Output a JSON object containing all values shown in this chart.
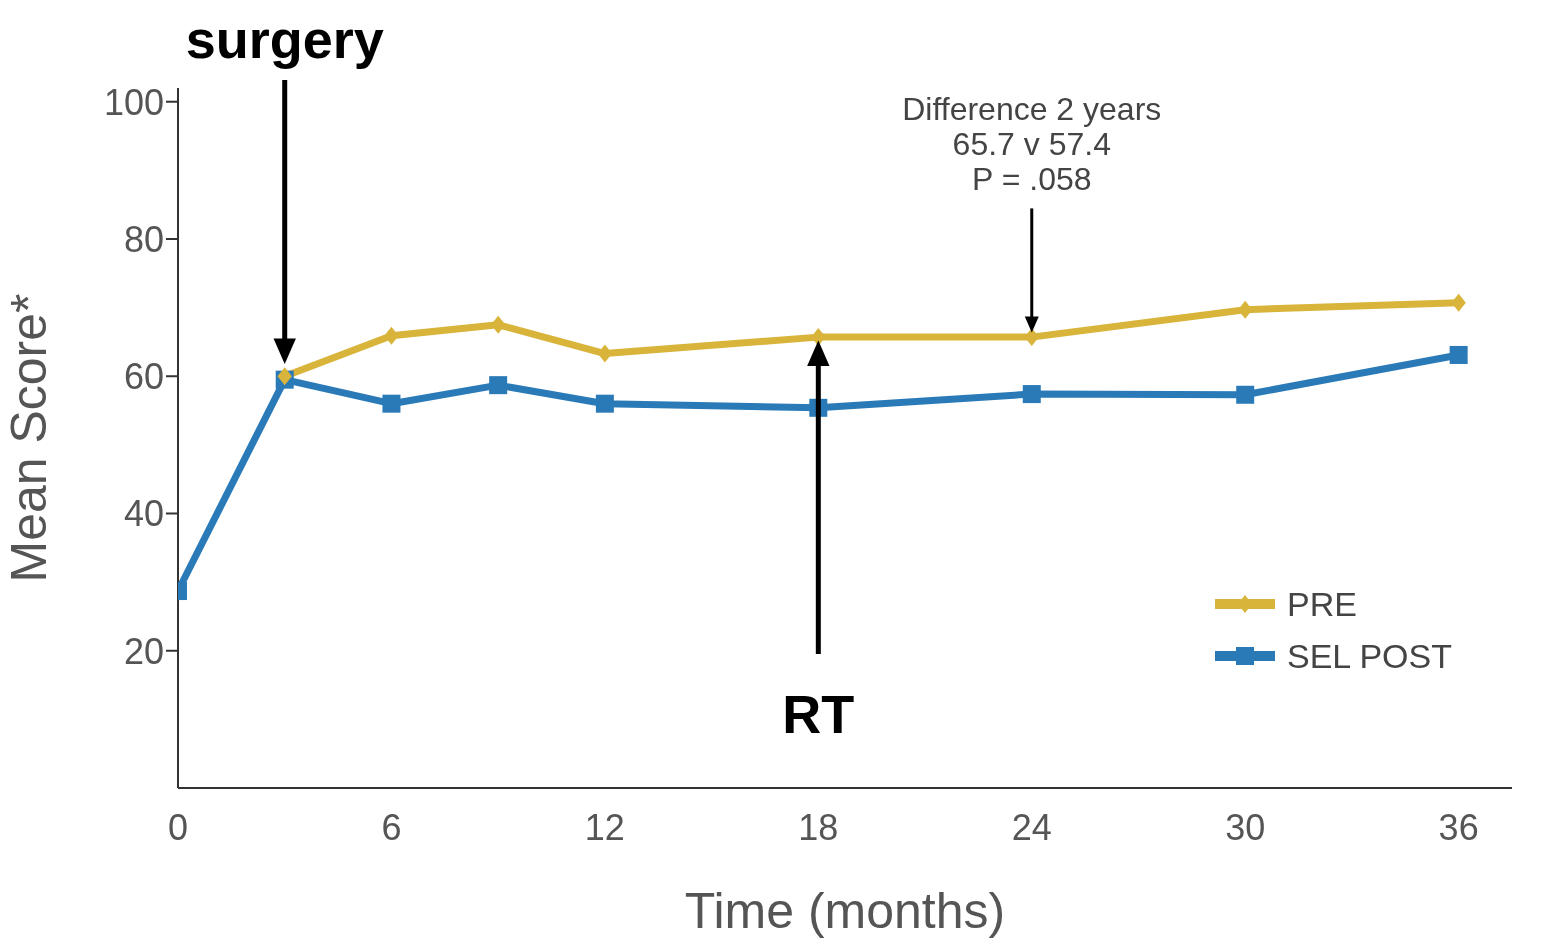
{
  "chart_data": {
    "type": "line",
    "xlabel": "Time (months)",
    "ylabel": "Mean Score*",
    "xlim": [
      0,
      37.5
    ],
    "xticks": [
      0,
      6,
      12,
      18,
      24,
      30,
      36
    ],
    "ylim": [
      0,
      102
    ],
    "yticks": [
      20,
      40,
      60,
      80,
      100
    ],
    "legend": "bottom right",
    "series": [
      {
        "name": "PRE",
        "color": "#d9b43a",
        "marker": "diamond",
        "x": [
          3,
          6,
          9,
          12,
          18,
          24,
          30,
          36
        ],
        "values": [
          60,
          65.9,
          67.5,
          63.3,
          65.7,
          65.7,
          69.7,
          70.7
        ]
      },
      {
        "name": "SEL POST",
        "color": "#2a7ab8",
        "marker": "square",
        "x": [
          0,
          3,
          6,
          9,
          12,
          18,
          24,
          30,
          36
        ],
        "values": [
          28.7,
          59.5,
          56,
          58.7,
          56,
          55.4,
          57.4,
          57.3,
          63.1
        ]
      }
    ],
    "annotations": [
      "surgery",
      "RT",
      "Difference 2 years\n65.7 v 57.4\nP = .058"
    ]
  }
}
